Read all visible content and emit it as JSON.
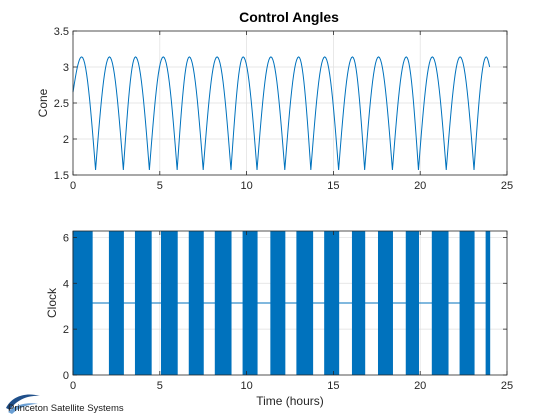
{
  "figure_title": "Control Angles",
  "chart_data": [
    {
      "type": "line",
      "ylabel": "Cone",
      "xlabel": "",
      "xlim": [
        0,
        25
      ],
      "ylim": [
        1.5,
        3.5
      ],
      "xticks": [
        "0",
        "5",
        "10",
        "15",
        "20",
        "25"
      ],
      "yticks": [
        "1.5",
        "2",
        "2.5",
        "3",
        "3.5"
      ],
      "grid": true,
      "series": [
        {
          "color": "#0072BD",
          "x": [
            0,
            0.5,
            1.3,
            2.1,
            2.9,
            3.6,
            4.4,
            5.2,
            6.0,
            6.7,
            7.5,
            8.3,
            9.1,
            9.8,
            10.6,
            11.4,
            12.2,
            13.0,
            13.7,
            14.5,
            15.3,
            16.1,
            16.8,
            17.6,
            18.4,
            19.2,
            19.9,
            20.7,
            21.5,
            22.3,
            23.1,
            23.8,
            24.0
          ],
          "y": [
            2.65,
            3.14,
            1.57,
            3.14,
            1.57,
            3.14,
            1.57,
            3.14,
            1.57,
            3.14,
            1.57,
            3.14,
            1.57,
            3.14,
            1.57,
            3.14,
            1.57,
            3.14,
            1.57,
            3.14,
            1.57,
            3.14,
            1.57,
            3.14,
            1.57,
            3.14,
            1.57,
            3.14,
            1.57,
            3.14,
            1.57,
            3.14,
            3.0
          ]
        }
      ]
    },
    {
      "type": "line",
      "ylabel": "Clock",
      "xlabel": "Time (hours)",
      "xlim": [
        0,
        25
      ],
      "ylim": [
        0,
        6.28
      ],
      "xticks": [
        "0",
        "5",
        "10",
        "15",
        "20",
        "25"
      ],
      "yticks": [
        "0",
        "2",
        "4",
        "6"
      ],
      "grid": true,
      "baseline_value": 3.14,
      "dense_switching_intervals": [
        [
          0.0,
          1.1
        ],
        [
          2.1,
          2.9
        ],
        [
          3.6,
          4.5
        ],
        [
          5.1,
          6.0
        ],
        [
          6.7,
          7.5
        ],
        [
          8.2,
          9.1
        ],
        [
          9.8,
          10.6
        ],
        [
          11.4,
          12.2
        ],
        [
          12.9,
          13.8
        ],
        [
          14.5,
          15.3
        ],
        [
          16.1,
          16.8
        ],
        [
          17.6,
          18.4
        ],
        [
          19.2,
          19.9
        ],
        [
          20.7,
          21.6
        ],
        [
          22.3,
          23.1
        ],
        [
          23.8,
          24.0
        ]
      ],
      "series": [
        {
          "color": "#0072BD",
          "value_range": [
            0,
            6.28
          ]
        }
      ]
    }
  ],
  "footer": {
    "brand_text": "Princeton Satellite Systems",
    "logo_icon": "swoosh-logo-icon"
  }
}
